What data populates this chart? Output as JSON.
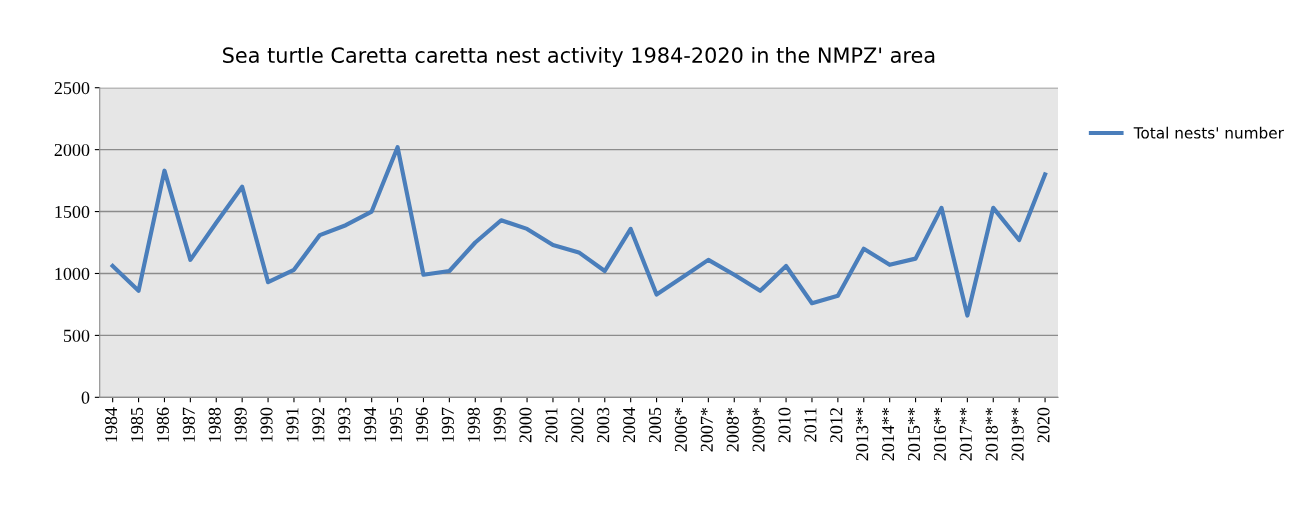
{
  "chart_data": {
    "type": "line",
    "title": "Sea turtle Caretta caretta nest activity 1984-2020 in the NMPZ' area",
    "categories": [
      "1984",
      "1985",
      "1986",
      "1987",
      "1988",
      "1989",
      "1990",
      "1991",
      "1992",
      "1993",
      "1994",
      "1995",
      "1996",
      "1997",
      "1998",
      "1999",
      "2000",
      "2001",
      "2002",
      "2003",
      "2004",
      "2005",
      "2006*",
      "2007*",
      "2008*",
      "2009*",
      "2010",
      "2011",
      "2012",
      "2013**",
      "2014**",
      "2015**",
      "2016**",
      "2017**",
      "2018**",
      "2019**",
      "2020"
    ],
    "series": [
      {
        "name": "Total nests' number",
        "color": "#4a7ebb",
        "values": [
          1060,
          860,
          1830,
          1110,
          1410,
          1700,
          930,
          1030,
          1310,
          1390,
          1500,
          2020,
          990,
          1020,
          1250,
          1430,
          1360,
          1230,
          1170,
          1020,
          1360,
          830,
          970,
          1110,
          990,
          860,
          1060,
          760,
          820,
          1200,
          1070,
          1120,
          1530,
          660,
          1530,
          1270,
          1800
        ]
      }
    ],
    "ylim": [
      0,
      2500
    ],
    "yticks": [
      0,
      500,
      1000,
      1500,
      2000,
      2500
    ],
    "grid": "y",
    "legend": "right",
    "marker": "none",
    "line_style": "solid"
  }
}
